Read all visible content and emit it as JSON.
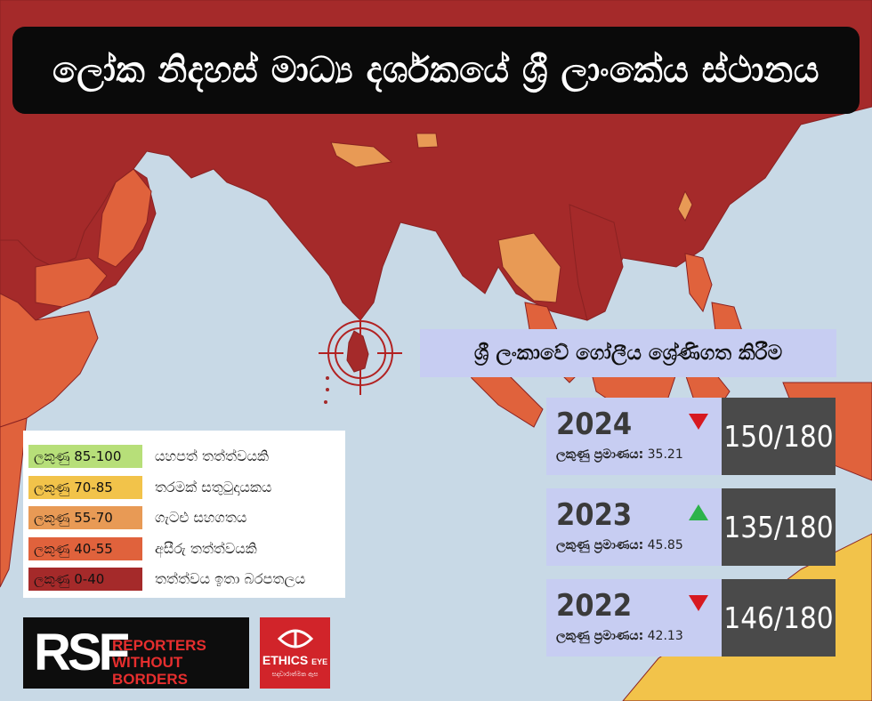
{
  "title": "ලෝක නිදහස් මාධ්‍ය දර්ශකයේ ශ්‍රී ලාංකේය ස්ථානය",
  "subtitle": "ශ්‍රී ලංකාවේ ගෝලීය ශ්‍රේණිගත කිරීම",
  "colors": {
    "ocean": "#c8d9e6",
    "very_serious": "#a52a2a",
    "difficult": "#e0623c",
    "problematic": "#e89a55",
    "satisfactory": "#f2c34a",
    "good": "#b7df79",
    "panel_light": "#c7cdf2",
    "panel_dark": "#4a4a4a"
  },
  "rankings": [
    {
      "year": "2024",
      "score_label": "ලකුණු ප්‍රමාණය:",
      "score": "35.21",
      "rank": "150/180",
      "trend": "down"
    },
    {
      "year": "2023",
      "score_label": "ලකුණු ප්‍රමාණය:",
      "score": "45.85",
      "rank": "135/180",
      "trend": "up"
    },
    {
      "year": "2022",
      "score_label": "ලකුණු ප්‍රමාණය:",
      "score": "42.13",
      "rank": "146/180",
      "trend": "down"
    }
  ],
  "legend": [
    {
      "range": "ලකුණු 85-100",
      "label": "යහපත් තත්ත්වයකි",
      "color": "#b7df79"
    },
    {
      "range": "ලකුණු 70-85",
      "label": "තරමක් සතුටුදායකය",
      "color": "#f2c34a"
    },
    {
      "range": "ලකුණු 55-70",
      "label": "ගැටළු සහගතය",
      "color": "#e89a55"
    },
    {
      "range": "ලකුණු 40-55",
      "label": "අසීරු තත්ත්වයකි",
      "color": "#e0623c"
    },
    {
      "range": "ලකුණු 0-40",
      "label": "තත්ත්වය ඉතා බරපතලය",
      "color": "#a52a2a"
    }
  ],
  "logos": {
    "rsf_mark": "RSF",
    "rsf_text_line1": "REPORTERS",
    "rsf_text_line2": "WITHOUT BORDERS",
    "ethics_name": "ETHICS",
    "ethics_eye": "EYE",
    "ethics_sub": "සදාචාරාත්මක ඇස"
  }
}
